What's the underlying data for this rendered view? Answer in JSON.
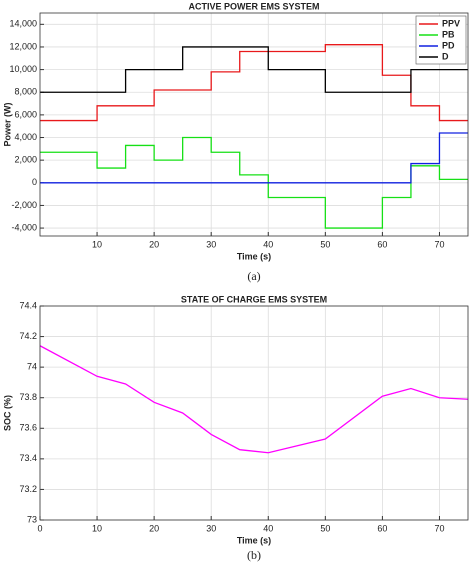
{
  "chart_data": [
    {
      "type": "line",
      "title": "ACTIVE POWER EMS SYSTEM",
      "xlabel": "Time (s)",
      "ylabel": "Power (W)",
      "caption": "(a)",
      "x": [
        0,
        10,
        10,
        15,
        15,
        20,
        20,
        25,
        25,
        30,
        30,
        35,
        35,
        40,
        40,
        50,
        50,
        60,
        60,
        65,
        65,
        70,
        70,
        75
      ],
      "series": [
        {
          "name": "PPV",
          "color": "#e8191b",
          "values": [
            5500,
            5500,
            6800,
            6800,
            6800,
            6800,
            8200,
            8200,
            8200,
            8200,
            9800,
            9800,
            11600,
            11600,
            11600,
            11600,
            12200,
            12200,
            9500,
            9500,
            6800,
            6800,
            5500,
            5500
          ]
        },
        {
          "name": "PB",
          "color": "#16e016",
          "values": [
            2700,
            2700,
            1300,
            1300,
            3300,
            3300,
            2000,
            2000,
            4000,
            4000,
            2700,
            2700,
            700,
            700,
            -1300,
            -1300,
            -4000,
            -4000,
            -1300,
            -1300,
            1500,
            1500,
            300,
            300
          ]
        },
        {
          "name": "PD",
          "color": "#1020e0",
          "values": [
            0,
            0,
            0,
            0,
            0,
            0,
            0,
            0,
            0,
            0,
            0,
            0,
            0,
            0,
            0,
            0,
            0,
            0,
            0,
            0,
            1700,
            1700,
            4400,
            4400
          ]
        },
        {
          "name": "D",
          "color": "#000000",
          "values": [
            8000,
            8000,
            8000,
            8000,
            10000,
            10000,
            10000,
            10000,
            12000,
            12000,
            12000,
            12000,
            12000,
            12000,
            10000,
            10000,
            8000,
            8000,
            8000,
            8000,
            10000,
            10000,
            10000,
            10000
          ]
        }
      ],
      "xlim": [
        0,
        75
      ],
      "xticks": [
        10,
        20,
        30,
        40,
        50,
        60,
        70
      ],
      "ylim": [
        -4700,
        15000
      ],
      "yticks": [
        {
          "value": -4000,
          "label": "-4,000"
        },
        {
          "value": -2000,
          "label": "-2,000"
        },
        0,
        {
          "value": 2000,
          "label": "2,000"
        },
        {
          "value": 4000,
          "label": "4,000"
        },
        {
          "value": 6000,
          "label": "6,000"
        },
        {
          "value": 8000,
          "label": "8,000"
        },
        {
          "value": 10000,
          "label": "10,000"
        },
        {
          "value": 12000,
          "label": "12,000"
        },
        {
          "value": 14000,
          "label": "14,000"
        }
      ],
      "grid": true,
      "legend": "top-right"
    },
    {
      "type": "line",
      "title": "STATE OF CHARGE EMS SYSTEM",
      "xlabel": "Time (s)",
      "ylabel": "SOC (%)",
      "caption": "(b)",
      "x": [
        0,
        10,
        15,
        20,
        25,
        30,
        35,
        40,
        50,
        60,
        65,
        70,
        75
      ],
      "values": [
        74.14,
        73.94,
        73.89,
        73.77,
        73.7,
        73.56,
        73.46,
        73.44,
        73.53,
        73.81,
        73.86,
        73.8,
        73.79
      ],
      "color": "#ff00ff",
      "xlim": [
        0,
        75
      ],
      "xticks": [
        0,
        10,
        20,
        30,
        40,
        50,
        60,
        70
      ],
      "ylim": [
        73,
        74.4
      ],
      "yticks": [
        73,
        73.2,
        73.4,
        73.6,
        73.8,
        74,
        74.2,
        74.4
      ],
      "grid": true
    }
  ]
}
